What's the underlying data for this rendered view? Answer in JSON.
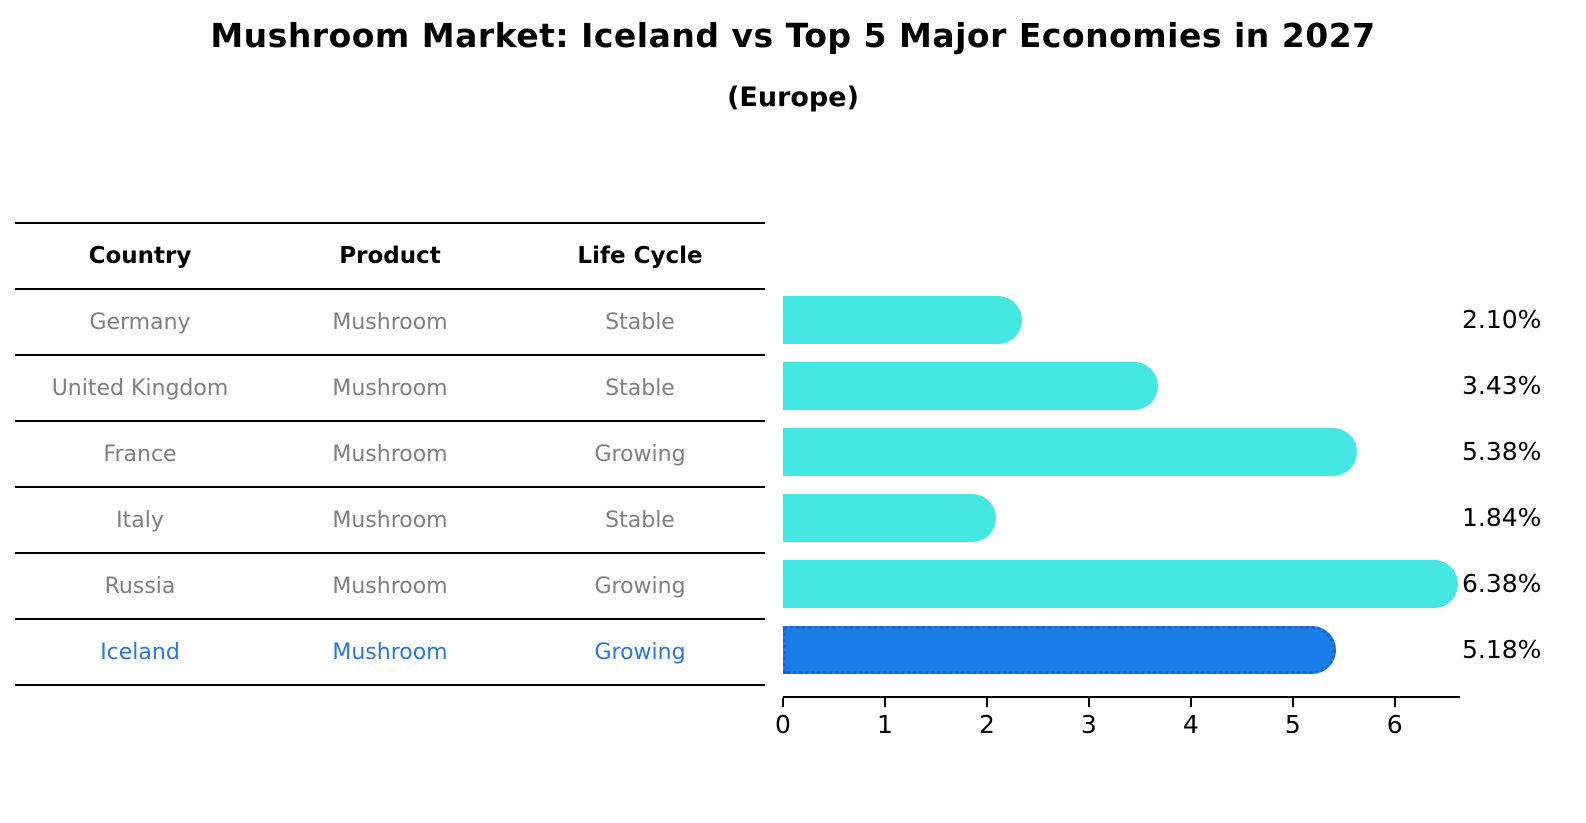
{
  "title": "Mushroom Market: Iceland vs Top 5 Major Economies in 2027",
  "subtitle": "(Europe)",
  "table": {
    "columns": [
      "Country",
      "Product",
      "Life Cycle"
    ],
    "rows": [
      {
        "country": "Germany",
        "product": "Mushroom",
        "life_cycle": "Stable",
        "highlight": false
      },
      {
        "country": "United Kingdom",
        "product": "Mushroom",
        "life_cycle": "Stable",
        "highlight": false
      },
      {
        "country": "France",
        "product": "Mushroom",
        "life_cycle": "Growing",
        "highlight": false
      },
      {
        "country": "Italy",
        "product": "Mushroom",
        "life_cycle": "Stable",
        "highlight": false
      },
      {
        "country": "Russia",
        "product": "Mushroom",
        "life_cycle": "Growing",
        "highlight": false
      },
      {
        "country": "Iceland",
        "product": "Mushroom",
        "life_cycle": "Growing",
        "highlight": true
      }
    ]
  },
  "chart_data": {
    "type": "bar",
    "orientation": "horizontal",
    "title": "Mushroom Market: Iceland vs Top 5 Major Economies in 2027 (Europe)",
    "categories": [
      "Germany",
      "United Kingdom",
      "France",
      "Italy",
      "Russia",
      "Iceland"
    ],
    "values": [
      2.1,
      3.43,
      5.38,
      1.84,
      6.38,
      5.18
    ],
    "value_labels": [
      "2.10%",
      "3.43%",
      "5.38%",
      "1.84%",
      "6.38%",
      "5.18%"
    ],
    "highlight_index": 5,
    "x_ticks": [
      0,
      1,
      2,
      3,
      4,
      5,
      6
    ],
    "xlim": [
      0,
      6.64
    ],
    "grid": "off",
    "legend": "none"
  },
  "colors": {
    "bar": "#45E7E2",
    "highlight_bar": "#1B7DE8",
    "highlight_border": "#1A66CC",
    "row_text": "#808080",
    "highlight_text": "#2A79D8",
    "header_text": "#000000",
    "line": "#000000"
  }
}
